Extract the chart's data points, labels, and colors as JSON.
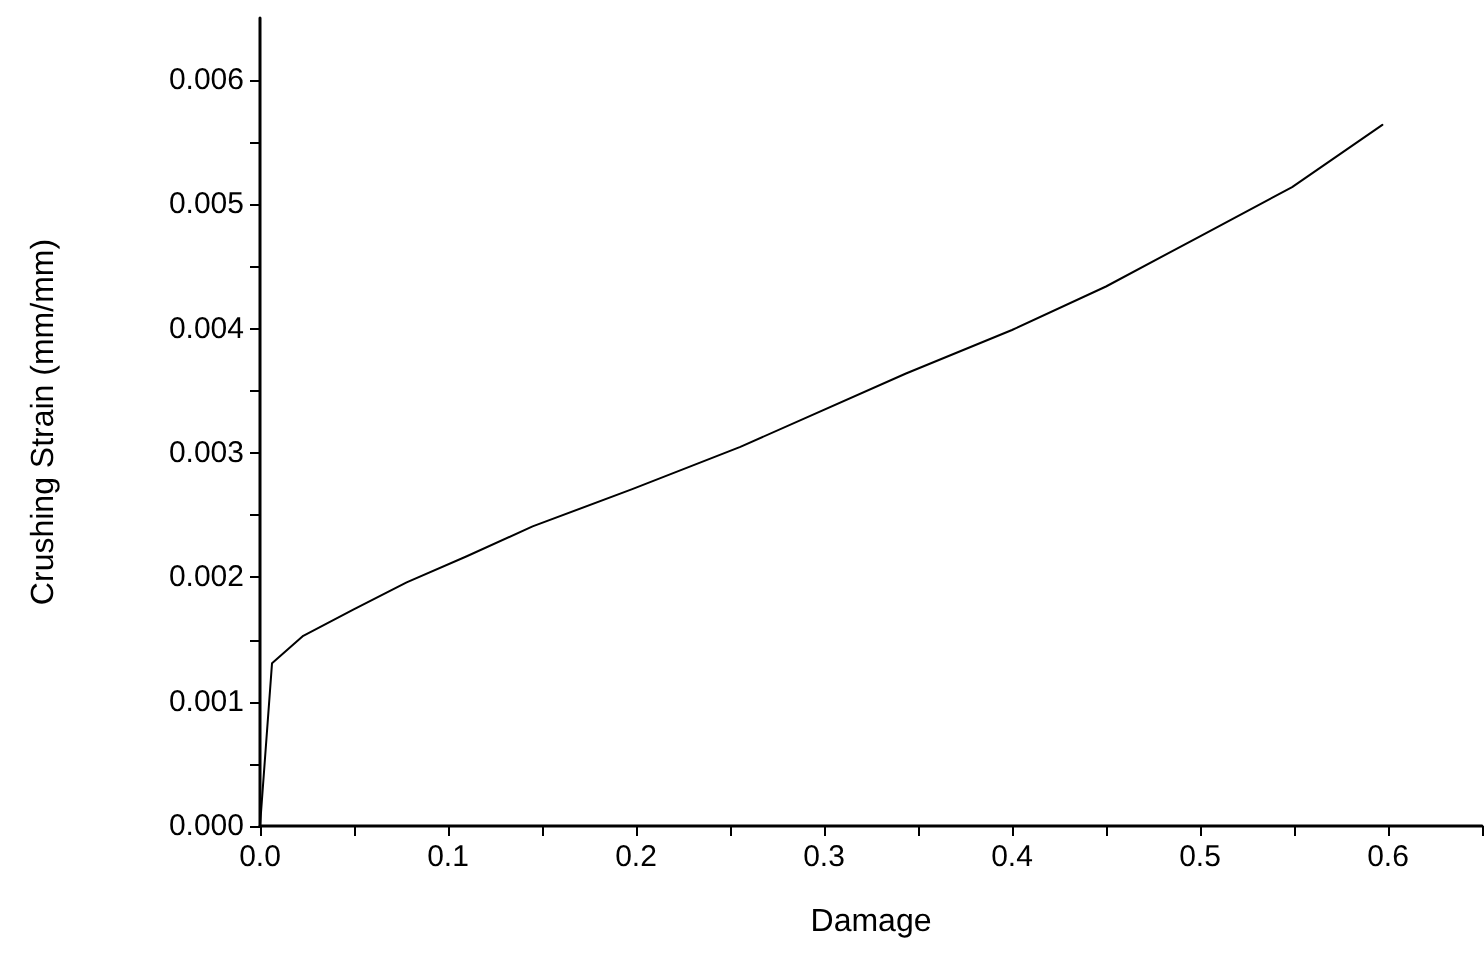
{
  "chart_data": {
    "type": "line",
    "xlabel": "Damage",
    "ylabel": "Crushing Strain (mm/mm)",
    "series": [
      {
        "color": "#000000",
        "x": [
          0,
          0.0064,
          0.023,
          0.0496,
          0.078,
          0.11,
          0.145,
          0.198,
          0.2555,
          0.3436,
          0.4,
          0.45,
          0.4995,
          0.549,
          0.597
        ],
        "values": [
          0,
          0.00131,
          0.00153,
          0.00174,
          0.00196,
          0.00217,
          0.00241,
          0.00271,
          0.00305,
          0.00364,
          0.00399,
          0.00434,
          0.00474,
          0.00514,
          0.00564
        ]
      }
    ],
    "xlim": [
      0,
      0.65
    ],
    "ylim": [
      0,
      0.0065
    ],
    "xticks": [
      {
        "value": 0,
        "label": "0.0"
      },
      {
        "value": 0.05,
        "label": null
      },
      0.1,
      {
        "value": 0.15,
        "label": null
      },
      0.2,
      {
        "value": 0.25,
        "label": null
      },
      0.3,
      {
        "value": 0.35,
        "label": null
      },
      0.4,
      {
        "value": 0.45,
        "label": null
      },
      0.5,
      {
        "value": 0.55,
        "label": null
      },
      0.6,
      {
        "value": 0.65,
        "label": null
      }
    ],
    "yticks": [
      {
        "value": 0,
        "label": "0.000"
      },
      {
        "value": 0.0005,
        "label": null
      },
      0.001,
      {
        "value": 0.0015,
        "label": null
      },
      0.002,
      {
        "value": 0.0025,
        "label": null
      },
      0.003,
      {
        "value": 0.0035,
        "label": null
      },
      0.004,
      {
        "value": 0.0045,
        "label": null
      },
      0.005,
      {
        "value": 0.0055,
        "label": null
      },
      0.006
    ],
    "grid": false,
    "marker": "none",
    "line_style": "solid"
  }
}
